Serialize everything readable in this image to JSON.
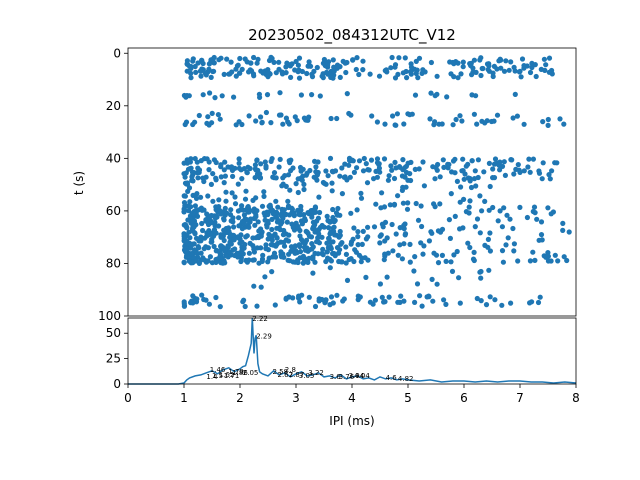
{
  "figure": {
    "title": "20230502_084312UTC_V12",
    "accent_color": "#1f77b4"
  },
  "chart_data": [
    {
      "type": "scatter",
      "title": "20230502_084312UTC_V12",
      "xlabel": "",
      "ylabel": "t (s)",
      "xlim": [
        0,
        8
      ],
      "ylim": [
        100,
        -2
      ],
      "y_inverted": true,
      "x_tick_labels_hidden": true,
      "yticks": [
        0,
        20,
        40,
        60,
        80,
        100
      ],
      "grid": false,
      "color": "#1f77b4",
      "bands": [
        {
          "t_min": 1.5,
          "t_max": 9.5,
          "x_min": 1.05,
          "x_max": 7.6,
          "n": 240
        },
        {
          "t_min": 15,
          "t_max": 17,
          "x_min": 1.0,
          "x_max": 7.1,
          "n": 26
        },
        {
          "t_min": 22.5,
          "t_max": 27.5,
          "x_min": 1.0,
          "x_max": 7.8,
          "n": 75
        },
        {
          "t_min": 40,
          "t_max": 48,
          "x_min": 1.0,
          "x_max": 7.9,
          "n": 230
        },
        {
          "t_min": 48,
          "t_max": 58,
          "x_min": 1.0,
          "x_max": 6.5,
          "n": 90
        },
        {
          "t_min": 58,
          "t_max": 80,
          "x_min": 1.0,
          "x_max": 3.8,
          "n": 560
        },
        {
          "t_min": 58,
          "t_max": 80,
          "x_min": 3.8,
          "x_max": 8.0,
          "n": 150
        },
        {
          "t_min": 81,
          "t_max": 89,
          "x_min": 2.0,
          "x_max": 6.5,
          "n": 20
        },
        {
          "t_min": 92,
          "t_max": 96.5,
          "x_min": 1.0,
          "x_max": 7.4,
          "n": 80
        }
      ]
    },
    {
      "type": "line",
      "xlabel": "IPI (ms)",
      "ylabel": "",
      "xlim": [
        0,
        8
      ],
      "ylim": [
        0,
        65
      ],
      "xticks": [
        0,
        1,
        2,
        3,
        4,
        5,
        6,
        7,
        8
      ],
      "yticks": [
        0,
        25,
        50
      ],
      "grid": false,
      "color": "#1f77b4",
      "series": [
        {
          "x": [
            0,
            0.9,
            1.0,
            1.05,
            1.1,
            1.2,
            1.3,
            1.4,
            1.5,
            1.6,
            1.7,
            1.8,
            1.9,
            2.0,
            2.05,
            2.1,
            2.15,
            2.2,
            2.22,
            2.25,
            2.27,
            2.29,
            2.32,
            2.35,
            2.4,
            2.5,
            2.6,
            2.7,
            2.8,
            2.9,
            3.0,
            3.1,
            3.2,
            3.3,
            3.4,
            3.5,
            3.6,
            3.7,
            3.8,
            3.9,
            4.0,
            4.1,
            4.2,
            4.3,
            4.4,
            4.5,
            4.6,
            4.7,
            4.8,
            4.9,
            5.0,
            5.2,
            5.4,
            5.6,
            5.8,
            6.0,
            6.2,
            6.4,
            6.6,
            6.8,
            7.0,
            7.2,
            7.4,
            7.6,
            7.8,
            8.0
          ],
          "y": [
            0,
            0,
            1,
            4,
            6,
            8,
            9,
            11,
            13,
            10,
            14,
            16,
            12,
            15,
            17,
            18,
            28,
            40,
            65,
            30,
            45,
            48,
            20,
            12,
            10,
            8,
            13,
            9,
            11,
            7,
            10,
            12,
            8,
            9,
            11,
            7,
            8,
            6,
            9,
            5,
            7,
            8,
            5,
            6,
            4,
            7,
            5,
            6,
            4,
            5,
            4,
            3,
            4,
            2,
            3,
            3,
            2,
            3,
            2,
            3,
            3,
            2,
            2,
            1,
            2,
            1
          ]
        }
      ],
      "peak_labels": [
        {
          "x": 1.4,
          "y": 8,
          "text": "1.4"
        },
        {
          "x": 1.5,
          "y": 9,
          "text": "1.5"
        },
        {
          "x": 1.62,
          "y": 10,
          "text": "1.62"
        },
        {
          "x": 1.71,
          "y": 9,
          "text": "1.71"
        },
        {
          "x": 1.46,
          "y": 15,
          "text": "1.46"
        },
        {
          "x": 1.79,
          "y": 13,
          "text": "1.79"
        },
        {
          "x": 1.86,
          "y": 12,
          "text": "1.86"
        },
        {
          "x": 2.05,
          "y": 12,
          "text": "2.05"
        },
        {
          "x": 2.22,
          "y": 65,
          "text": "2.22"
        },
        {
          "x": 2.29,
          "y": 48,
          "text": "2.29"
        },
        {
          "x": 2.58,
          "y": 13,
          "text": "2.58"
        },
        {
          "x": 2.8,
          "y": 15,
          "text": "2.8"
        },
        {
          "x": 2.67,
          "y": 10,
          "text": "2.67"
        },
        {
          "x": 2.87,
          "y": 10,
          "text": "2.87"
        },
        {
          "x": 3.05,
          "y": 9,
          "text": "3.05"
        },
        {
          "x": 3.22,
          "y": 12,
          "text": "3.22"
        },
        {
          "x": 3.6,
          "y": 8,
          "text": "3.6"
        },
        {
          "x": 3.76,
          "y": 8,
          "text": "3.76"
        },
        {
          "x": 3.94,
          "y": 9,
          "text": "3.94"
        },
        {
          "x": 4.04,
          "y": 9,
          "text": "4.04"
        },
        {
          "x": 4.6,
          "y": 7,
          "text": "4.6"
        },
        {
          "x": 4.82,
          "y": 6,
          "text": "4.82"
        }
      ]
    }
  ]
}
